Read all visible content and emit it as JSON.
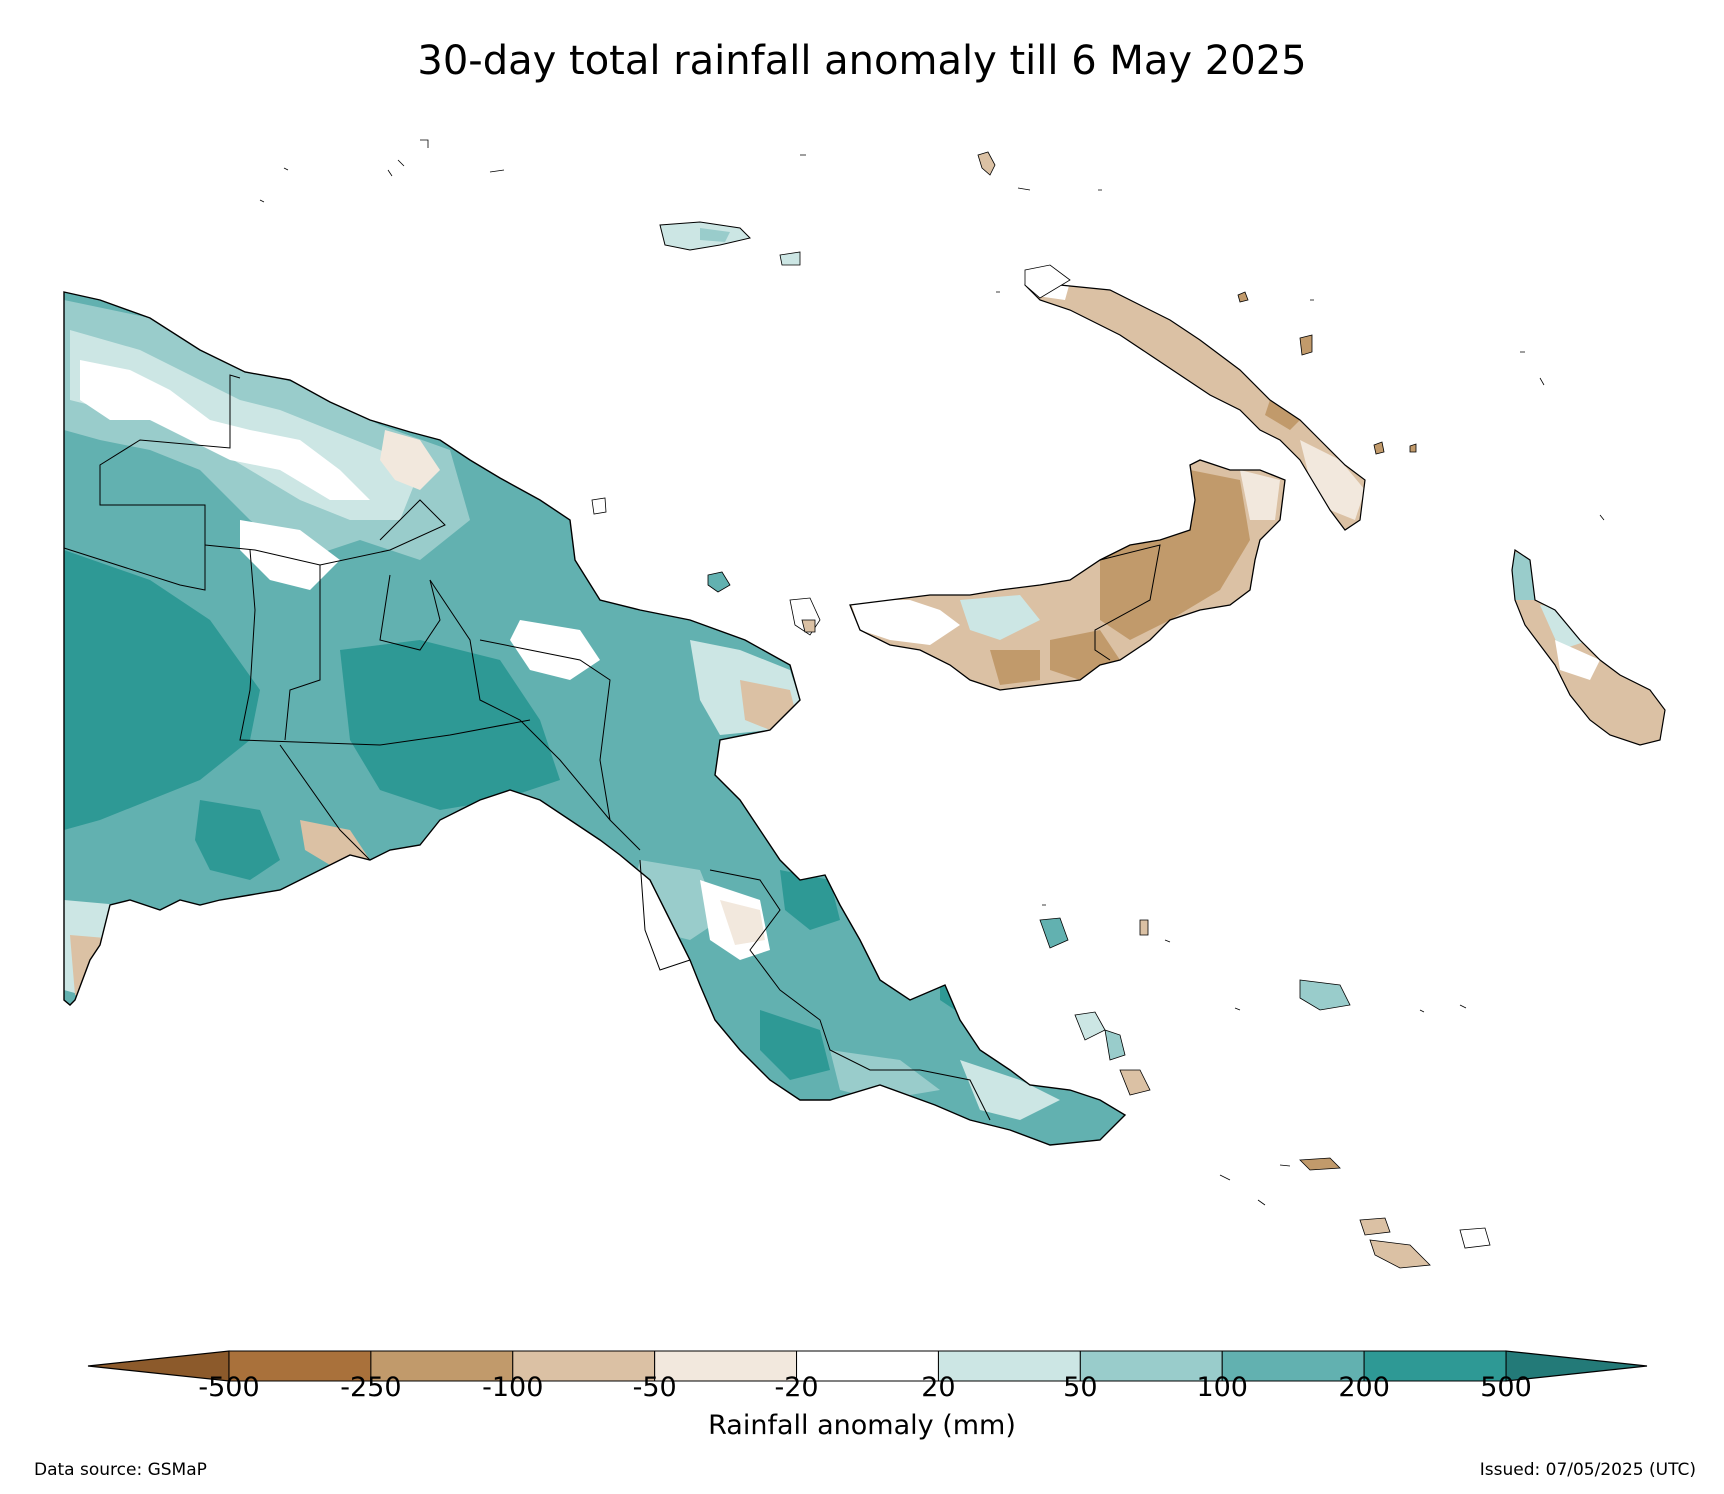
{
  "title": "30-day total rainfall anomaly till 6 May 2025",
  "colorbar": {
    "label": "Rainfall anomaly (mm)",
    "ticks": [
      "-500",
      "-250",
      "-100",
      "-50",
      "-20",
      "20",
      "50",
      "100",
      "200",
      "500"
    ],
    "colors": {
      "extend_low": "#8c5a2b",
      "bins": [
        "#a9713b",
        "#c19a6b",
        "#dbc1a4",
        "#f2e8dd",
        "#ffffff",
        "#cce6e4",
        "#99cccb",
        "#62b1b0",
        "#2e9995"
      ],
      "extend_high": "#237a78"
    }
  },
  "map_colors": {
    "wet_strong": "#2e9995",
    "wet_moderate": "#62b1b0",
    "wet_light": "#99cccb",
    "wet_slight": "#cce6e4",
    "neutral": "#ffffff",
    "dry_slight": "#f2e8dd",
    "dry_light": "#dbc1a4",
    "dry_moderate": "#c19a6b",
    "dry_strong": "#a9713b"
  },
  "footer": {
    "source": "Data source: GSMaP",
    "issued": "Issued: 07/05/2025 (UTC)"
  }
}
